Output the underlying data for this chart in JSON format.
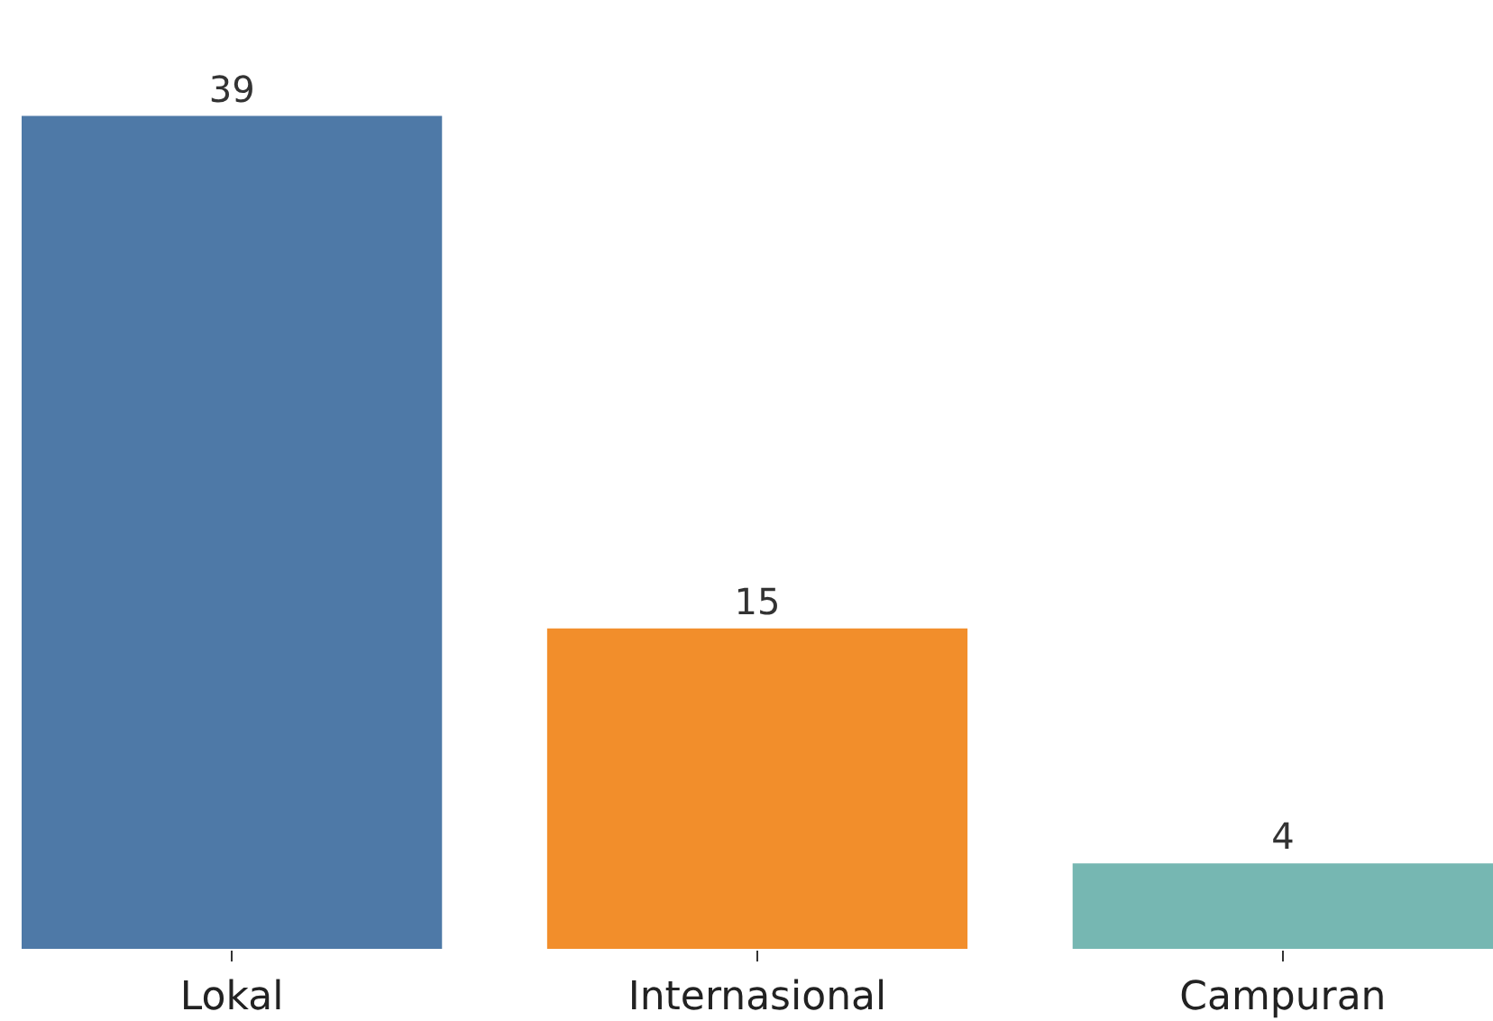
{
  "chart_data": {
    "type": "bar",
    "categories": [
      "Lokal",
      "Internasional",
      "Campuran"
    ],
    "values": [
      39,
      15,
      4
    ],
    "colors": [
      "#4e79a7",
      "#f28e2b",
      "#76b7b2"
    ],
    "data_labels": true
  }
}
